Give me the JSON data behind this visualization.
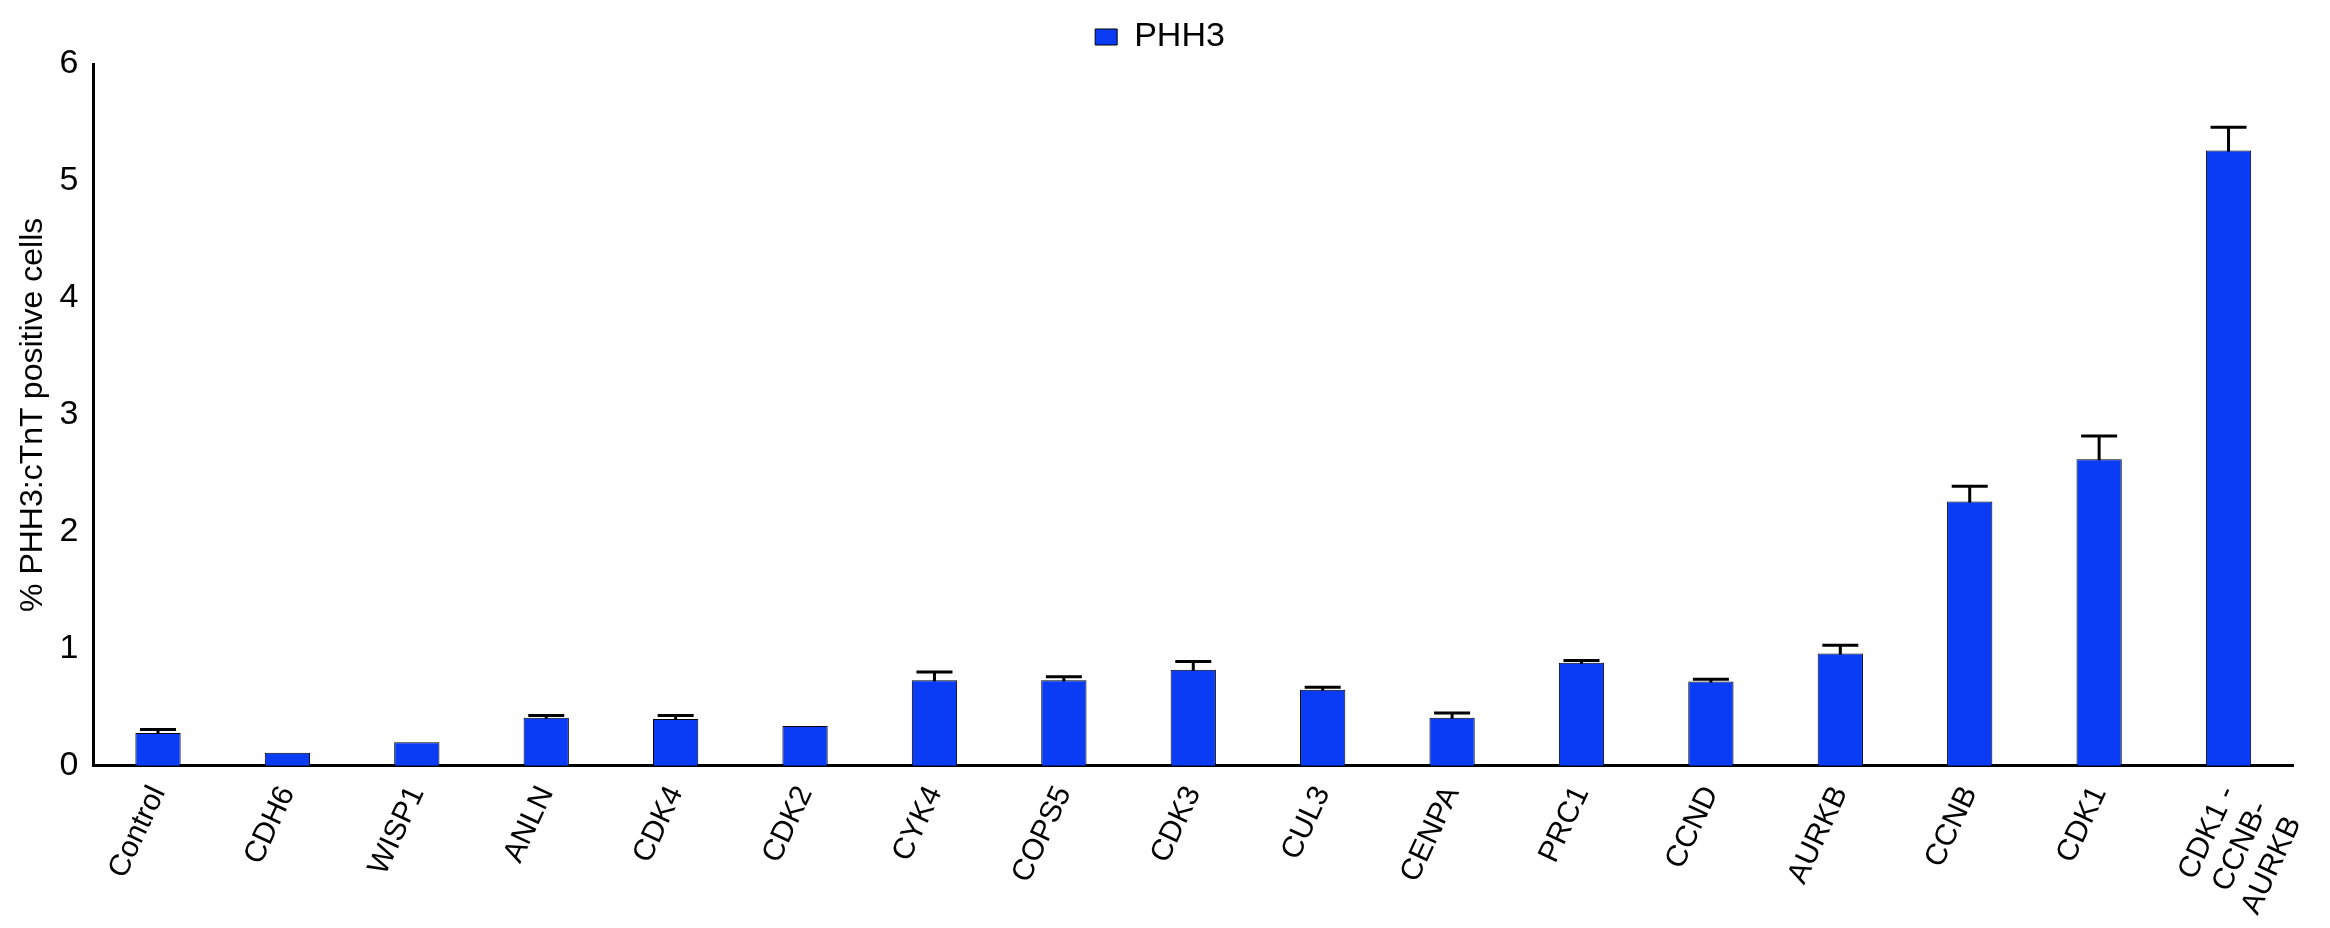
{
  "chart_data": {
    "type": "bar",
    "ylabel": "% PHH3:cTnT positive cells",
    "categories": [
      "Control",
      "CDH6",
      "WISP1",
      "ANLN",
      "CDK4",
      "CDK2",
      "CYK4",
      "COPS5",
      "CDK3",
      "CUL3",
      "CENPA",
      "PRC1",
      "CCND",
      "AURKB",
      "CCNB",
      "CDK1",
      "CDK1 -\nCCNB-\nAURKB"
    ],
    "series": [
      {
        "name": "PHH3",
        "color": "#0a3cf5",
        "values": [
          0.28,
          0.11,
          0.2,
          0.41,
          0.4,
          0.34,
          0.73,
          0.73,
          0.82,
          0.65,
          0.41,
          0.88,
          0.72,
          0.96,
          2.26,
          2.62,
          5.26
        ],
        "errors": [
          0.03,
          null,
          null,
          0.02,
          0.03,
          null,
          0.07,
          0.03,
          0.07,
          0.02,
          0.04,
          0.02,
          0.02,
          0.07,
          0.13,
          0.2,
          0.2
        ]
      }
    ],
    "ylim": [
      0,
      6
    ],
    "yticks": [
      0,
      1,
      2,
      3,
      4,
      5,
      6
    ],
    "grid": false,
    "legend": "top"
  }
}
